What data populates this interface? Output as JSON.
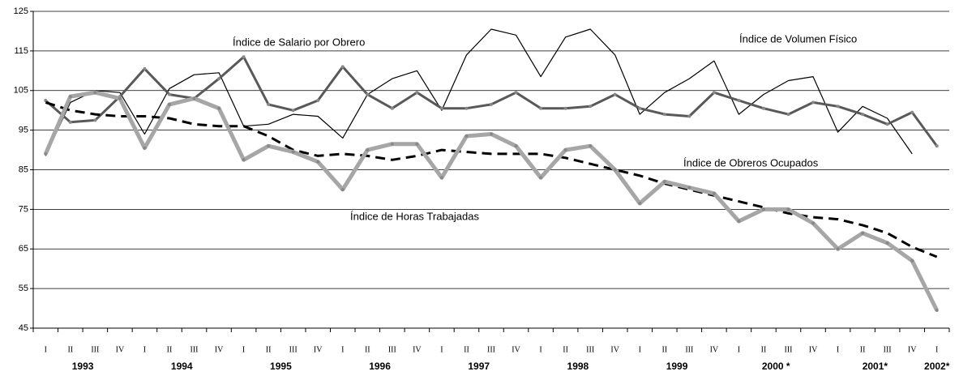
{
  "chart_data": {
    "type": "line",
    "categories": [
      "I",
      "II",
      "III",
      "IV",
      "I",
      "II",
      "III",
      "IV",
      "I",
      "II",
      "III",
      "IV",
      "I",
      "II",
      "III",
      "IV",
      "I",
      "II",
      "III",
      "IV",
      "I",
      "II",
      "III",
      "IV",
      "I",
      "II",
      "III",
      "IV",
      "I",
      "II",
      "III",
      "IV",
      "I",
      "II",
      "III",
      "IV",
      "I"
    ],
    "year_labels": [
      "1993",
      "1994",
      "1995",
      "1996",
      "1997",
      "1998",
      "1999",
      "2000 *",
      "2001*",
      "2002*"
    ],
    "ylim": [
      45,
      125
    ],
    "yticks": [
      45,
      55,
      65,
      75,
      85,
      95,
      105,
      115,
      125
    ],
    "grid": true,
    "series": [
      {
        "name": "Índice de Volumen Físico",
        "color": "#000000",
        "width": 1.2,
        "dash": false,
        "markers": false,
        "values": [
          88.5,
          102,
          105,
          104.5,
          94,
          105.5,
          109,
          109.5,
          96,
          96.5,
          99,
          98.5,
          93,
          104,
          108,
          110,
          100,
          114,
          120.5,
          119,
          108.5,
          118.5,
          120.5,
          114,
          99,
          104.5,
          108,
          112.5,
          99,
          104,
          107.5,
          108.5,
          94.5,
          101,
          98,
          89,
          null
        ]
      },
      {
        "name": "Índice de Salario por Obrero",
        "color": "#595959",
        "width": 3,
        "dash": false,
        "markers": true,
        "values": [
          102.5,
          97,
          97.5,
          103.5,
          110.5,
          104,
          103,
          108,
          113.5,
          101.5,
          100,
          102.5,
          111,
          104,
          100.5,
          104.5,
          100.5,
          100.5,
          101.5,
          104.5,
          100.5,
          100.5,
          101,
          104,
          100.5,
          99,
          98.5,
          104.5,
          102.5,
          100.5,
          99,
          102,
          101,
          99,
          96.5,
          99.5,
          91
        ]
      },
      {
        "name": "Índice de Obreros Ocupados",
        "color": "#000000",
        "width": 3,
        "dash": true,
        "markers": false,
        "values": [
          102,
          100,
          99,
          98.5,
          98.5,
          98,
          96.5,
          96,
          96,
          93.5,
          90,
          88.5,
          89,
          88.5,
          87.5,
          88.5,
          90,
          89.5,
          89,
          89,
          89,
          88,
          86.5,
          85,
          83.5,
          81.5,
          80,
          78.5,
          77,
          75.5,
          74,
          73,
          72.5,
          71,
          69,
          65.5,
          63
        ]
      },
      {
        "name": "Índice de Horas Trabajadas",
        "color": "#a6a6a6",
        "width": 5,
        "dash": false,
        "markers": true,
        "values": [
          89,
          103.5,
          104.5,
          103,
          90.5,
          101.5,
          103,
          100.5,
          87.5,
          91,
          89.5,
          87,
          80,
          90,
          91.5,
          91.5,
          83,
          93.5,
          94,
          91,
          83,
          90,
          91,
          85,
          76.5,
          82,
          80.5,
          79,
          72,
          75,
          75,
          71.5,
          65,
          69,
          66.5,
          62,
          49.5
        ]
      }
    ]
  }
}
